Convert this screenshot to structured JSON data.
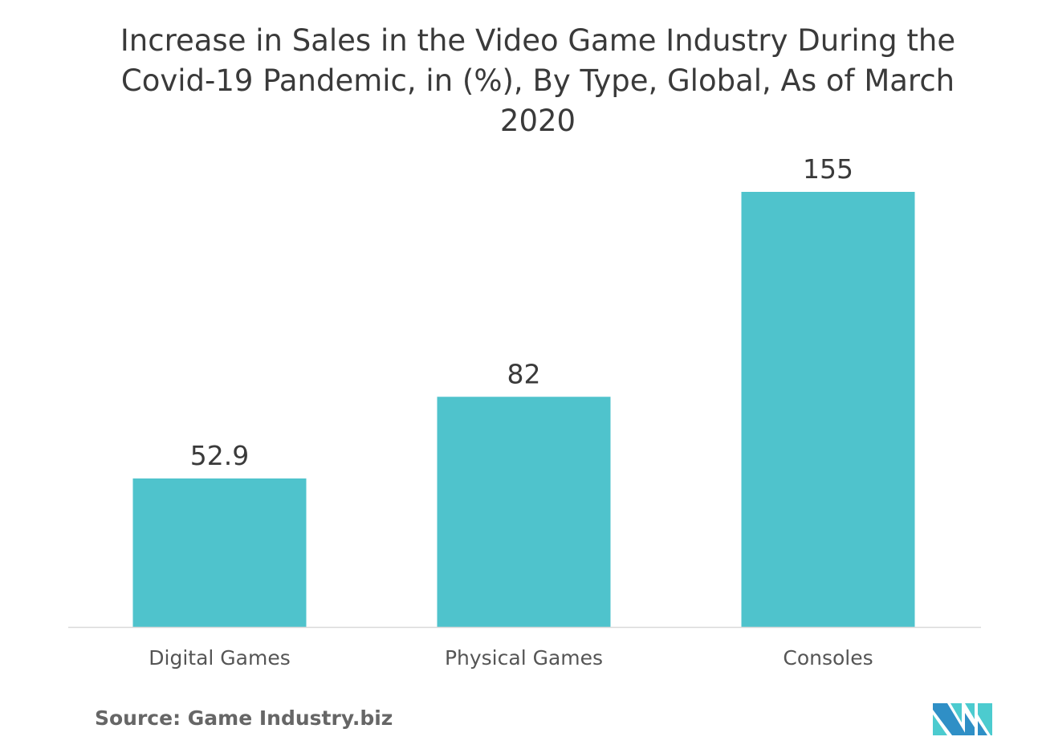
{
  "chart_data": {
    "type": "bar",
    "title": "Increase in Sales in the Video Game Industry During the Covid-19 Pandemic, in (%), By Type, Global, As of March 2020",
    "categories": [
      "Digital Games",
      "Physical Games",
      "Consoles"
    ],
    "values": [
      52.9,
      82,
      155
    ],
    "value_labels": [
      "52.9",
      "82",
      "155"
    ],
    "xlabel": "",
    "ylabel": "",
    "ylim": [
      0,
      155
    ],
    "grid": false,
    "legend": "none",
    "colors": {
      "bar": "#4fc3cc",
      "axis": "#d9d9d9",
      "text": "#3a3a3a"
    }
  },
  "source": "Source: Game Industry.biz",
  "logo": {
    "name": "mordor-intelligence-logo",
    "colors": [
      "#2f8fc6",
      "#4ccbcf"
    ]
  }
}
